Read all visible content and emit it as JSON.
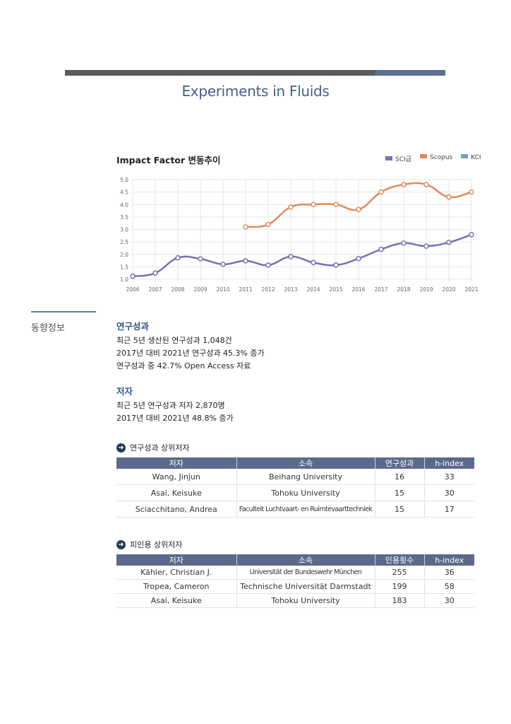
{
  "title": "Experiments in Fluids",
  "chart_data": {
    "type": "line",
    "title": "Impact Factor 변동추이",
    "x": [
      "2006",
      "2007",
      "2008",
      "2009",
      "2010",
      "2011",
      "2012",
      "2013",
      "2014",
      "2015",
      "2016",
      "2017",
      "2018",
      "2019",
      "2020",
      "2021"
    ],
    "ylim": [
      1.0,
      5.0
    ],
    "yticks": [
      "1.0",
      "1.5",
      "2.0",
      "2.5",
      "3.0",
      "3.5",
      "4.0",
      "4.5",
      "5.0"
    ],
    "grid": true,
    "legend_position": "top-right",
    "series": [
      {
        "name": "SCI급",
        "color": "#7472b4",
        "values": [
          1.12,
          1.25,
          1.86,
          1.82,
          1.6,
          1.74,
          1.57,
          1.91,
          1.67,
          1.57,
          1.83,
          2.2,
          2.45,
          2.33,
          2.48,
          2.79
        ]
      },
      {
        "name": "Scopus",
        "color": "#e08a5a",
        "values": [
          null,
          null,
          null,
          null,
          null,
          3.1,
          3.2,
          3.9,
          4.0,
          4.0,
          3.8,
          4.5,
          4.8,
          4.8,
          4.3,
          4.5
        ]
      },
      {
        "name": "KCI",
        "color": "#6aa9ad",
        "values": [
          null,
          null,
          null,
          null,
          null,
          null,
          null,
          null,
          null,
          null,
          null,
          null,
          null,
          null,
          null,
          null
        ]
      }
    ]
  },
  "sidebar_label": "동향정보",
  "research": {
    "heading": "연구성과",
    "lines": [
      "최근 5년 생산된 연구성과 1,048건",
      "2017년 대비 2021년 연구성과 45.3% 증가",
      "연구성과 중 42.7% Open Access 자료"
    ]
  },
  "authors": {
    "heading": "저자",
    "lines": [
      "최근 5년 연구성과 저자 2,870명",
      "2017년 대비 2021년 48.8% 증가"
    ]
  },
  "top_output": {
    "heading": "연구성과 상위저자",
    "columns": [
      "저자",
      "소속",
      "연구성과",
      "h-index"
    ],
    "rows": [
      [
        "Wang, Jinjun",
        "Beihang University",
        "16",
        "33"
      ],
      [
        "Asai, Keisuke",
        "Tohoku University",
        "15",
        "30"
      ],
      [
        "Sciacchitano, Andrea",
        "Faculteit Luchtvaart- en Ruimtevaarttechniek",
        "15",
        "17"
      ]
    ]
  },
  "top_cited": {
    "heading": "피인용 상위저자",
    "columns": [
      "저자",
      "소속",
      "인용횟수",
      "h-index"
    ],
    "rows": [
      [
        "Kähler, Christian J.",
        "Universität der Bundeswehr München",
        "255",
        "36"
      ],
      [
        "Tropea, Cameron",
        "Technische Universität Darmstadt",
        "199",
        "58"
      ],
      [
        "Asai, Keisuke",
        "Tohoku University",
        "183",
        "30"
      ]
    ]
  }
}
